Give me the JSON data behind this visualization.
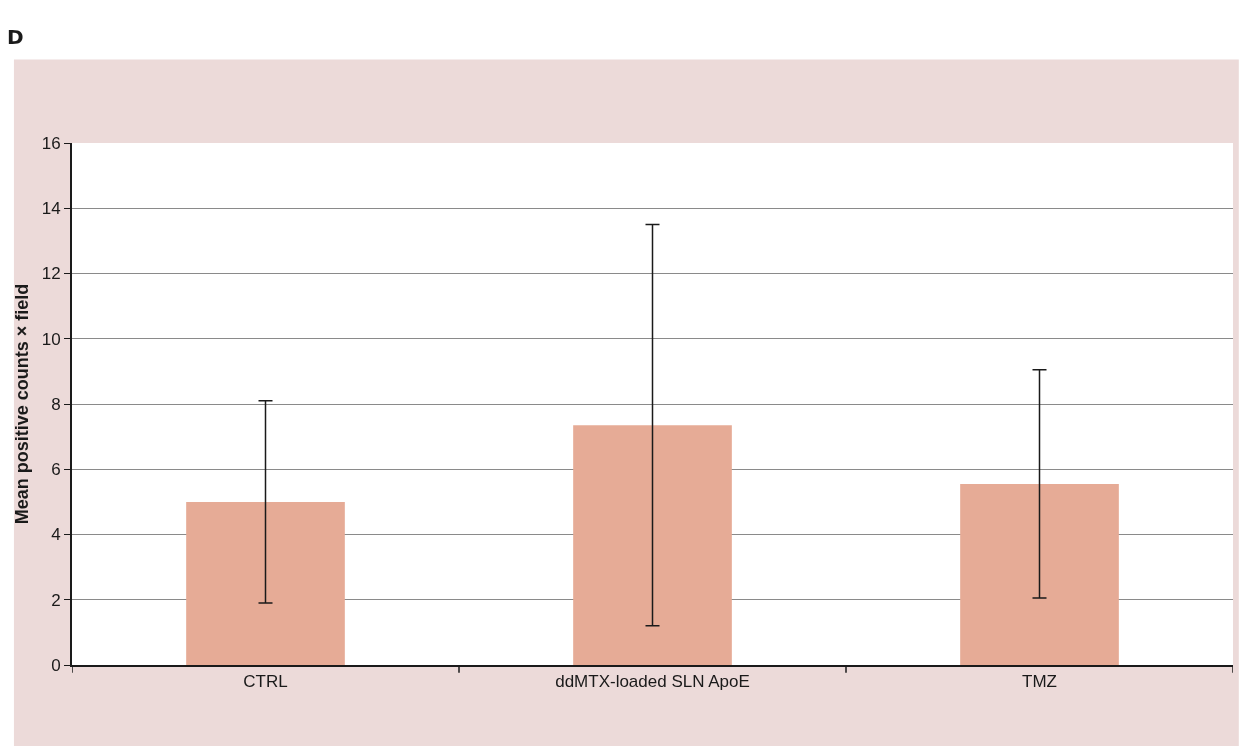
{
  "chart_data": {
    "type": "bar",
    "ylabel": "Mean positive counts × field",
    "annotations": [
      "D"
    ],
    "categories": [
      "CTRL",
      "ddMTX-loaded SLN ApoE",
      "TMZ"
    ],
    "values": [
      5.0,
      7.35,
      5.55
    ],
    "errors": [
      3.1,
      6.15,
      3.5
    ],
    "color": "#e6ab96",
    "ylim": [
      0,
      16
    ],
    "yticks": [
      0,
      2,
      4,
      6,
      8,
      10,
      12,
      14,
      16
    ],
    "grid": "y"
  }
}
